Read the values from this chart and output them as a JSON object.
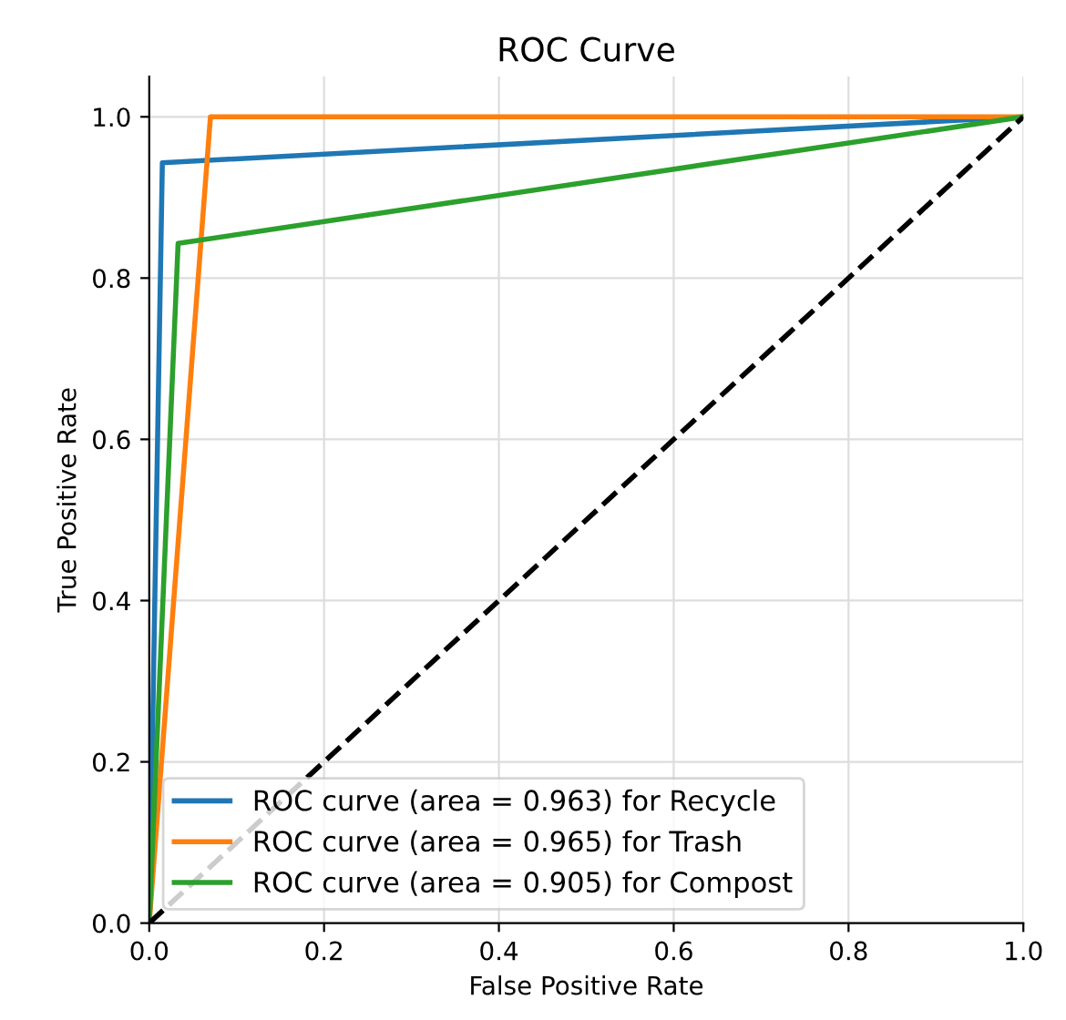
{
  "chart_data": {
    "type": "line",
    "title": "ROC Curve",
    "xlabel": "False Positive Rate",
    "ylabel": "True Positive Rate",
    "xlim": [
      0.0,
      1.0
    ],
    "ylim": [
      0.0,
      1.05
    ],
    "xticks": [
      {
        "value": 0,
        "label": "0.0"
      },
      0.2,
      0.4,
      0.6,
      0.8,
      {
        "value": 1,
        "label": "1.0"
      }
    ],
    "yticks": [
      {
        "value": 0,
        "label": "0.0"
      },
      0.2,
      0.4,
      0.6,
      0.8,
      {
        "value": 1,
        "label": "1.0"
      }
    ],
    "grid": true,
    "legend": "bottom left",
    "series": [
      {
        "name": "ROC curve (area = 0.963) for Recycle",
        "color": "#1f77b4",
        "x": [
          0.0,
          0.015,
          1.0
        ],
        "values": [
          0.0,
          0.943,
          1.0
        ]
      },
      {
        "name": "ROC curve (area = 0.965) for Trash",
        "color": "#ff7f0e",
        "x": [
          0.0,
          0.07,
          1.0
        ],
        "values": [
          0.0,
          1.0,
          1.0
        ]
      },
      {
        "name": "ROC curve (area = 0.905) for Compost",
        "color": "#2ca02c",
        "x": [
          0.0,
          0.033,
          1.0
        ],
        "values": [
          0.0,
          0.843,
          1.0
        ]
      },
      {
        "color": "#000000",
        "line_style": "dashed",
        "x": [
          0.0,
          1.0
        ],
        "values": [
          0.0,
          1.0
        ]
      }
    ]
  }
}
